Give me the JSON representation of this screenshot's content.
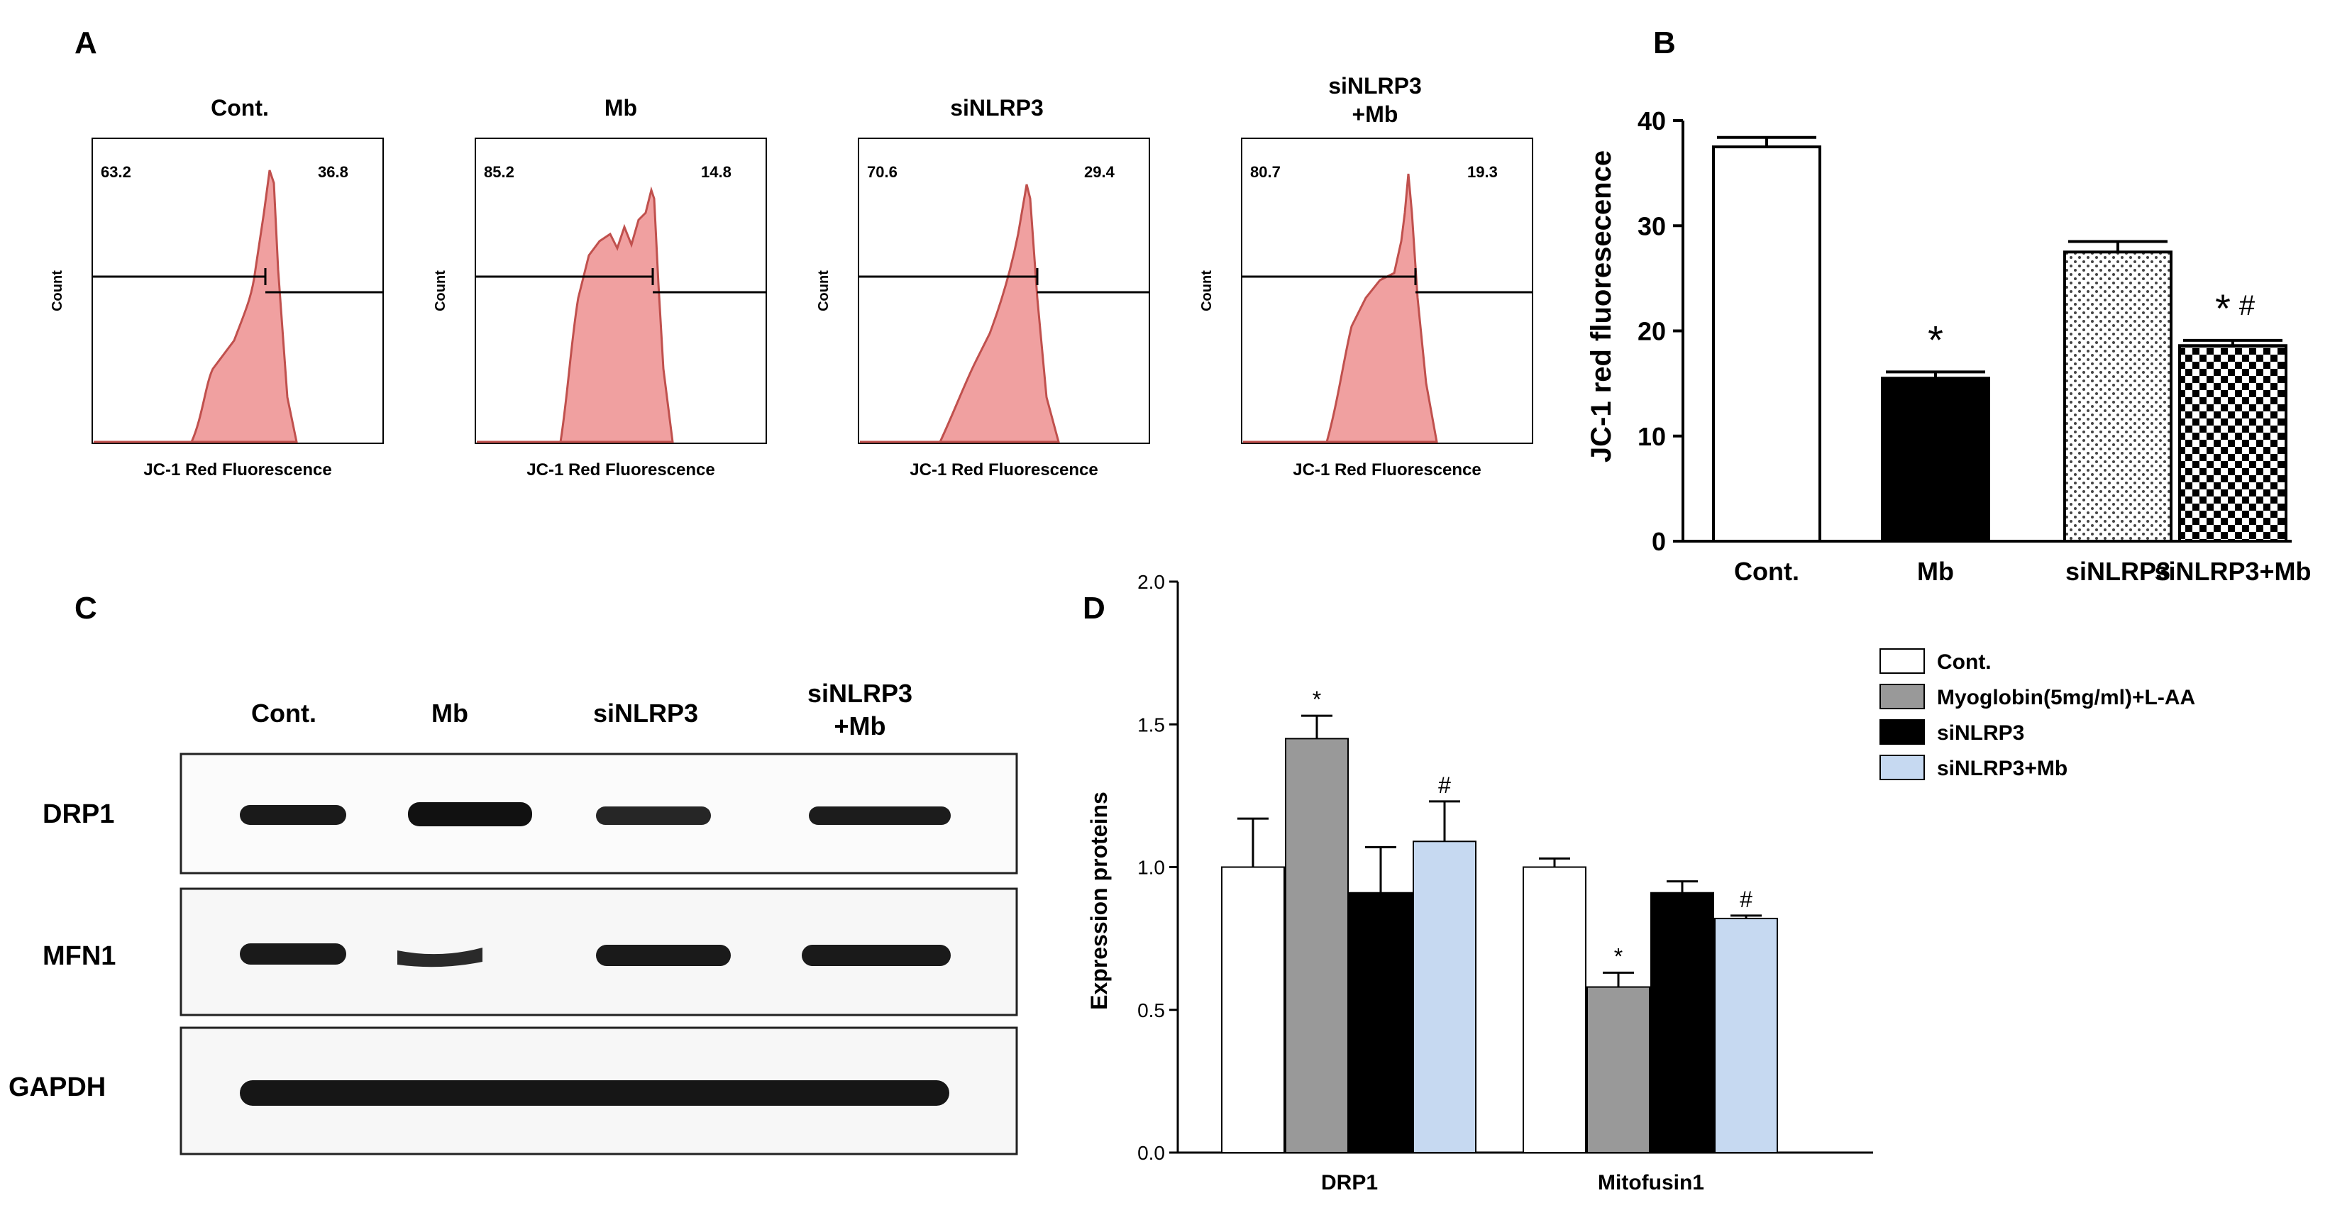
{
  "panel_letters": {
    "a": "A",
    "b": "B",
    "c": "C",
    "d": "D"
  },
  "colors": {
    "histogram_fill": "#f0a0a0",
    "histogram_stroke": "#c0504d",
    "control_bar": "#ffffff",
    "myoglobin_bar": "#999999",
    "sinlrp3_bar": "#000000",
    "sinlrp3_mb_bar": "#c6d9f1"
  },
  "chart_data": [
    {
      "type": "histogram",
      "panel": "A",
      "xlabel": "JC-1 Red Fluorescence",
      "ylabel": "Count",
      "plots": [
        {
          "title": "Cont.",
          "left_value": "63.2",
          "right_value": "36.8"
        },
        {
          "title": "Mb",
          "left_value": "85.2",
          "right_value": "14.8"
        },
        {
          "title": "siNLRP3",
          "left_value": "70.6",
          "right_value": "29.4"
        },
        {
          "title": "siNLRP3\n+Mb",
          "title_line1": "siNLRP3",
          "title_line2": "+Mb",
          "left_value": "80.7",
          "right_value": "19.3"
        }
      ]
    },
    {
      "type": "bar",
      "panel": "B",
      "title": "",
      "xlabel": "",
      "ylabel": "JC-1 red fluoresecence",
      "categories": [
        "Cont.",
        "Mb",
        "siNLRP3",
        "siNLRP3+Mb"
      ],
      "values": [
        37.5,
        15.5,
        27.5,
        18.6
      ],
      "errors": [
        0.9,
        0.6,
        1.0,
        0.5
      ],
      "annotations": [
        "",
        "*",
        "",
        "*#"
      ],
      "annotation_star": "*",
      "annotation_hash": "#",
      "ylim": [
        0,
        40
      ],
      "yticks": [
        "0",
        "10",
        "20",
        "30",
        "40"
      ],
      "grid": false
    },
    {
      "type": "table",
      "panel": "C",
      "description_kind": "western-blot",
      "lanes": [
        "Cont.",
        "Mb",
        "siNLRP3",
        "siNLRP3\n+Mb"
      ],
      "lane_last_line1": "siNLRP3",
      "lane_last_line2": "+Mb",
      "rows": [
        "DRP1",
        "MFN1",
        "GAPDH"
      ]
    },
    {
      "type": "bar",
      "panel": "D",
      "title": "",
      "xlabel": "",
      "ylabel": "Expression proteins",
      "categories": [
        "DRP1",
        "Mitofusin1"
      ],
      "series": [
        {
          "name": "Cont.",
          "values": [
            1.0,
            1.0
          ],
          "errors": [
            0.17,
            0.03
          ],
          "annotations": [
            "",
            ""
          ]
        },
        {
          "name": "Myoglobin(5mg/ml)+L-AA",
          "values": [
            1.45,
            0.58
          ],
          "errors": [
            0.08,
            0.05
          ],
          "annotations": [
            "*",
            "*"
          ]
        },
        {
          "name": "siNLRP3",
          "values": [
            0.91,
            0.91
          ],
          "errors": [
            0.16,
            0.04
          ],
          "annotations": [
            "",
            ""
          ]
        },
        {
          "name": "siNLRP3+Mb",
          "values": [
            1.09,
            0.82
          ],
          "errors": [
            0.14,
            0.01
          ],
          "annotations": [
            "#",
            "#"
          ]
        }
      ],
      "ylim": [
        0,
        2.0
      ],
      "yticks": [
        "0.0",
        "0.5",
        "1.0",
        "1.5",
        "2.0"
      ],
      "legend_position": "top-right",
      "grid": false
    }
  ]
}
